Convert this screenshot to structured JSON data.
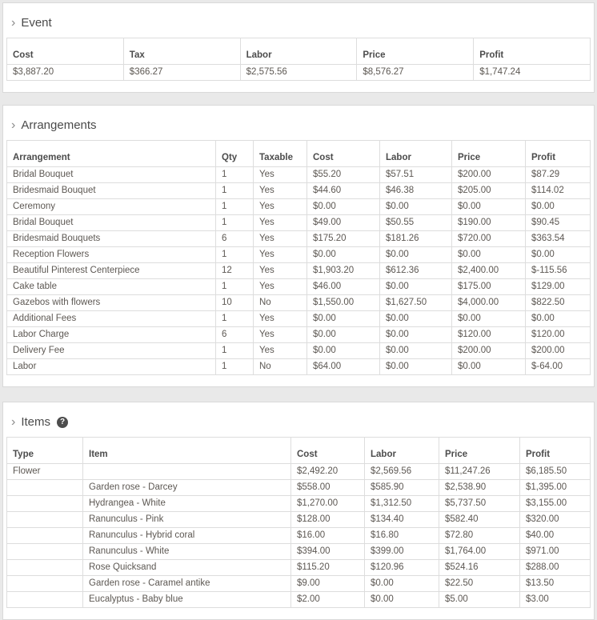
{
  "colors": {
    "page_bg": "#e9e9e9",
    "panel_bg": "#ffffff",
    "panel_border": "#d9d9d9",
    "border": "#dddddd",
    "title_text": "#4a4a4a",
    "header_text": "#4c4c4c",
    "cell_text": "#5d5853",
    "chevron": "#8a8a8a",
    "help_bg": "#4d4d4d"
  },
  "icons": {
    "section_chevron": "›",
    "help_glyph": "?"
  },
  "sections": {
    "event": {
      "title": "Event",
      "columns": [
        "Cost",
        "Tax",
        "Labor",
        "Price",
        "Profit"
      ],
      "rows": [
        [
          "$3,887.20",
          "$366.27",
          "$2,575.56",
          "$8,576.27",
          "$1,747.24"
        ]
      ]
    },
    "arrangements": {
      "title": "Arrangements",
      "columns": [
        "Arrangement",
        "Qty",
        "Taxable",
        "Cost",
        "Labor",
        "Price",
        "Profit"
      ],
      "rows": [
        [
          "Bridal Bouquet",
          "1",
          "Yes",
          "$55.20",
          "$57.51",
          "$200.00",
          "$87.29"
        ],
        [
          "Bridesmaid Bouquet",
          "1",
          "Yes",
          "$44.60",
          "$46.38",
          "$205.00",
          "$114.02"
        ],
        [
          "Ceremony",
          "1",
          "Yes",
          "$0.00",
          "$0.00",
          "$0.00",
          "$0.00"
        ],
        [
          "Bridal Bouquet",
          "1",
          "Yes",
          "$49.00",
          "$50.55",
          "$190.00",
          "$90.45"
        ],
        [
          "Bridesmaid Bouquets",
          "6",
          "Yes",
          "$175.20",
          "$181.26",
          "$720.00",
          "$363.54"
        ],
        [
          "Reception Flowers",
          "1",
          "Yes",
          "$0.00",
          "$0.00",
          "$0.00",
          "$0.00"
        ],
        [
          "Beautiful Pinterest Centerpiece",
          "12",
          "Yes",
          "$1,903.20",
          "$612.36",
          "$2,400.00",
          "$-115.56"
        ],
        [
          "Cake table",
          "1",
          "Yes",
          "$46.00",
          "$0.00",
          "$175.00",
          "$129.00"
        ],
        [
          "Gazebos with flowers",
          "10",
          "No",
          "$1,550.00",
          "$1,627.50",
          "$4,000.00",
          "$822.50"
        ],
        [
          "Additional Fees",
          "1",
          "Yes",
          "$0.00",
          "$0.00",
          "$0.00",
          "$0.00"
        ],
        [
          "Labor Charge",
          "6",
          "Yes",
          "$0.00",
          "$0.00",
          "$120.00",
          "$120.00"
        ],
        [
          "Delivery Fee",
          "1",
          "Yes",
          "$0.00",
          "$0.00",
          "$200.00",
          "$200.00"
        ],
        [
          "Labor",
          "1",
          "No",
          "$64.00",
          "$0.00",
          "$0.00",
          "$-64.00"
        ]
      ]
    },
    "items": {
      "title": "Items",
      "columns": [
        "Type",
        "Item",
        "Cost",
        "Labor",
        "Price",
        "Profit"
      ],
      "rows": [
        [
          "Flower",
          "",
          "$2,492.20",
          "$2,569.56",
          "$11,247.26",
          "$6,185.50"
        ],
        [
          "",
          "Garden rose - Darcey",
          "$558.00",
          "$585.90",
          "$2,538.90",
          "$1,395.00"
        ],
        [
          "",
          "Hydrangea - White",
          "$1,270.00",
          "$1,312.50",
          "$5,737.50",
          "$3,155.00"
        ],
        [
          "",
          "Ranunculus - Pink",
          "$128.00",
          "$134.40",
          "$582.40",
          "$320.00"
        ],
        [
          "",
          "Ranunculus - Hybrid coral",
          "$16.00",
          "$16.80",
          "$72.80",
          "$40.00"
        ],
        [
          "",
          "Ranunculus - White",
          "$394.00",
          "$399.00",
          "$1,764.00",
          "$971.00"
        ],
        [
          "",
          "Rose Quicksand",
          "$115.20",
          "$120.96",
          "$524.16",
          "$288.00"
        ],
        [
          "",
          "Garden rose - Caramel antike",
          "$9.00",
          "$0.00",
          "$22.50",
          "$13.50"
        ],
        [
          "",
          "Eucalyptus - Baby blue",
          "$2.00",
          "$0.00",
          "$5.00",
          "$3.00"
        ]
      ]
    }
  }
}
